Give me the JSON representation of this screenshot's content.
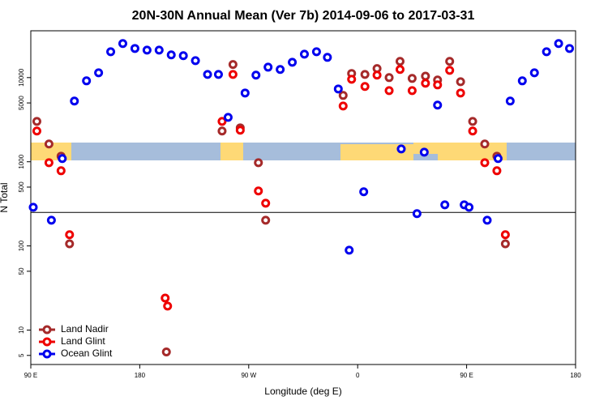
{
  "chart_data": {
    "type": "scatter",
    "title": "20N-30N Annual Mean (Ver 7b)   2014-09-06 to 2017-03-31",
    "xlabel": "Longitude (deg E)",
    "ylabel": "N Total",
    "xlim": [
      90,
      540
    ],
    "xticks": [
      {
        "value": 90,
        "label": "90 E"
      },
      180,
      {
        "value": 270,
        "label": "90 W"
      },
      {
        "value": 360,
        "label": "0"
      },
      {
        "value": 450,
        "label": "90 E"
      },
      {
        "value": 540,
        "label": "180"
      }
    ],
    "ylim": [
      3.9,
      36000
    ],
    "log_y": true,
    "yticks": [
      5,
      10,
      50,
      100,
      500,
      1000,
      5000,
      10000
    ],
    "hline": 250,
    "legend": "lower left",
    "series": [
      {
        "name": "Land Nadir",
        "color": "#a52a2a",
        "x": [
          95,
          105,
          115,
          122,
          202,
          248,
          257,
          263,
          278,
          284,
          348,
          355,
          366,
          376,
          386,
          395,
          405,
          416,
          426,
          436,
          445,
          455,
          465,
          475,
          482
        ],
        "values": [
          3020,
          1625,
          1165,
          106,
          5.5,
          2320,
          14300,
          2530,
          975,
          202,
          6140,
          11200,
          10900,
          12800,
          10000,
          15600,
          9780,
          10400,
          9360,
          15600,
          8940,
          3020,
          1625,
          1165,
          106
        ]
      },
      {
        "name": "Land Glint",
        "color": "#ee0000",
        "x": [
          95,
          105,
          115,
          122,
          201,
          203,
          248,
          257,
          263,
          278,
          284,
          348,
          355,
          366,
          376,
          386,
          395,
          405,
          416,
          426,
          436,
          445,
          455,
          465,
          475,
          482
        ],
        "values": [
          2320,
          975,
          782,
          136,
          24,
          19.3,
          3020,
          10900,
          2370,
          450,
          322,
          4600,
          9560,
          7840,
          10700,
          7010,
          12500,
          7010,
          8570,
          8190,
          12200,
          6560,
          2320,
          975,
          782,
          136
        ]
      },
      {
        "name": "Ocean Glint",
        "color": "#0000ee",
        "x": [
          92,
          107,
          116,
          126,
          136,
          146,
          156,
          166,
          176,
          186,
          196,
          206,
          216,
          226,
          236,
          245,
          253,
          267,
          276,
          286,
          296,
          306,
          316,
          326,
          335,
          344,
          353,
          365,
          396,
          409,
          415,
          426,
          432,
          448,
          452,
          467,
          476,
          486,
          496,
          506,
          516,
          526,
          535
        ],
        "values": [
          288,
          202,
          1091,
          5260,
          9150,
          11400,
          20300,
          25400,
          22200,
          21200,
          21200,
          18600,
          18200,
          15900,
          10900,
          10900,
          3370,
          6560,
          10700,
          13300,
          12500,
          15200,
          19000,
          20300,
          17400,
          7330,
          89,
          440,
          1420,
          242,
          1300,
          4710,
          308,
          308,
          288,
          202,
          1091,
          5260,
          9150,
          11400,
          20300,
          25400,
          22200
        ]
      }
    ]
  }
}
